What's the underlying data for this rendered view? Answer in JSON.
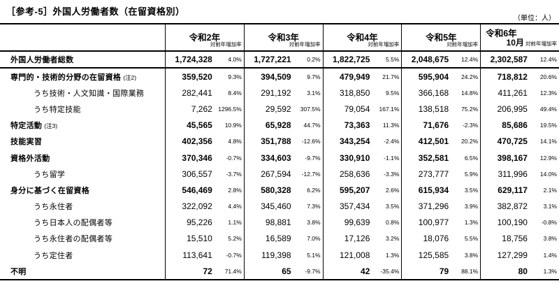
{
  "title": "［参考-5］外国人労働者数（在留資格別）",
  "unit_note": "（単位：人）",
  "header": {
    "rate_label": "対前年増加率",
    "years": [
      "令和2年",
      "令和3年",
      "令和4年",
      "令和5年"
    ],
    "last_year": {
      "line1": "令和6年",
      "line2": "10月"
    }
  },
  "rows": [
    {
      "label": "外国人労働者総数",
      "note": "",
      "cls": "em total",
      "values": [
        "1,724,328",
        "1,727,221",
        "1,822,725",
        "2,048,675",
        "2,302,587"
      ],
      "rates": [
        "4.0%",
        "0.2%",
        "5.5%",
        "12.4%",
        "12.4%"
      ]
    },
    {
      "label": "専門的・技術的分野の在留資格",
      "note": "(注2)",
      "cls": "em",
      "values": [
        "359,520",
        "394,509",
        "479,949",
        "595,904",
        "718,812"
      ],
      "rates": [
        "9.3%",
        "9.7%",
        "21.7%",
        "24.2%",
        "20.6%"
      ]
    },
    {
      "label": "うち技術・人文知識・国際業務",
      "note": "",
      "cls": "sub",
      "values": [
        "282,441",
        "291,192",
        "318,850",
        "366,168",
        "411,261"
      ],
      "rates": [
        "8.4%",
        "3.1%",
        "9.5%",
        "14.8%",
        "12.3%"
      ]
    },
    {
      "label": "うち特定技能",
      "note": "",
      "cls": "sub",
      "values": [
        "7,262",
        "29,592",
        "79,054",
        "138,518",
        "206,995"
      ],
      "rates": [
        "1296.5%",
        "307.5%",
        "167.1%",
        "75.2%",
        "49.4%"
      ]
    },
    {
      "label": "特定活動",
      "note": "(注3)",
      "cls": "em",
      "values": [
        "45,565",
        "65,928",
        "73,363",
        "71,676",
        "85,686"
      ],
      "rates": [
        "10.9%",
        "44.7%",
        "11.3%",
        "-2.3%",
        "19.5%"
      ]
    },
    {
      "label": "技能実習",
      "note": "",
      "cls": "em",
      "values": [
        "402,356",
        "351,788",
        "343,254",
        "412,501",
        "470,725"
      ],
      "rates": [
        "4.8%",
        "-12.6%",
        "-2.4%",
        "20.2%",
        "14.1%"
      ]
    },
    {
      "label": "資格外活動",
      "note": "",
      "cls": "em",
      "values": [
        "370,346",
        "334,603",
        "330,910",
        "352,581",
        "398,167"
      ],
      "rates": [
        "-0.7%",
        "-9.7%",
        "-1.1%",
        "6.5%",
        "12.9%"
      ]
    },
    {
      "label": "うち留学",
      "note": "",
      "cls": "sub",
      "values": [
        "306,557",
        "267,594",
        "258,636",
        "273,777",
        "311,996"
      ],
      "rates": [
        "-3.7%",
        "-12.7%",
        "-3.3%",
        "5.9%",
        "14.0%"
      ]
    },
    {
      "label": "身分に基づく在留資格",
      "note": "",
      "cls": "em",
      "values": [
        "546,469",
        "580,328",
        "595,207",
        "615,934",
        "629,117"
      ],
      "rates": [
        "2.8%",
        "6.2%",
        "2.6%",
        "3.5%",
        "2.1%"
      ]
    },
    {
      "label": "うち永住者",
      "note": "",
      "cls": "sub",
      "values": [
        "322,092",
        "345,460",
        "357,434",
        "371,296",
        "382,872"
      ],
      "rates": [
        "4.4%",
        "7.3%",
        "3.5%",
        "3.9%",
        "3.1%"
      ]
    },
    {
      "label": "うち日本人の配偶者等",
      "note": "",
      "cls": "sub",
      "values": [
        "95,226",
        "98,881",
        "99,639",
        "100,977",
        "100,190"
      ],
      "rates": [
        "1.1%",
        "3.8%",
        "0.8%",
        "1.3%",
        "-0.8%"
      ]
    },
    {
      "label": "うち永住者の配偶者等",
      "note": "",
      "cls": "sub",
      "values": [
        "15,510",
        "16,589",
        "17,126",
        "18,076",
        "18,756"
      ],
      "rates": [
        "5.2%",
        "7.0%",
        "3.2%",
        "5.5%",
        "3.8%"
      ]
    },
    {
      "label": "うち定住者",
      "note": "",
      "cls": "sub",
      "values": [
        "113,641",
        "119,398",
        "121,008",
        "125,585",
        "127,299"
      ],
      "rates": [
        "-0.7%",
        "5.1%",
        "1.3%",
        "3.8%",
        "1.4%"
      ]
    },
    {
      "label": "不明",
      "note": "",
      "cls": "em",
      "values": [
        "72",
        "65",
        "42",
        "79",
        "80"
      ],
      "rates": [
        "71.4%",
        "-9.7%",
        "-35.4%",
        "88.1%",
        "1.3%"
      ]
    }
  ]
}
